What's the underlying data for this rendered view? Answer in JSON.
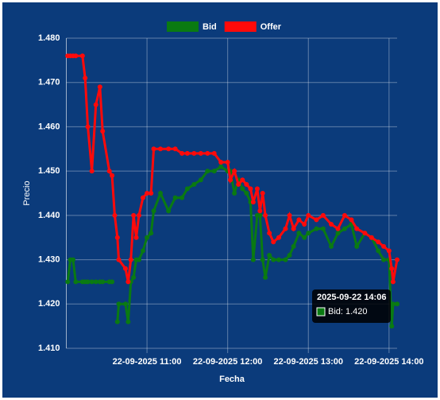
{
  "chart_data": {
    "type": "line",
    "y_label": "Precio",
    "x_label": "Fecha",
    "x": [
      "2025-09-22 10:01",
      "2025-09-22 10:03",
      "2025-09-22 10:05",
      "2025-09-22 10:07",
      "2025-09-22 10:12",
      "2025-09-22 10:14",
      "2025-09-22 10:16",
      "2025-09-22 10:19",
      "2025-09-22 10:22",
      "2025-09-22 10:25",
      "2025-09-22 10:27",
      "2025-09-22 10:32",
      "2025-09-22 10:34",
      "2025-09-22 10:36",
      "2025-09-22 10:38",
      "2025-09-22 10:39",
      "2025-09-22 10:44",
      "2025-09-22 10:46",
      "2025-09-22 10:48",
      "2025-09-22 10:50",
      "2025-09-22 10:52",
      "2025-09-22 10:54",
      "2025-09-22 10:57",
      "2025-09-22 11:00",
      "2025-09-22 11:03",
      "2025-09-22 11:05",
      "2025-09-22 11:10",
      "2025-09-22 11:16",
      "2025-09-22 11:21",
      "2025-09-22 11:26",
      "2025-09-22 11:30",
      "2025-09-22 11:35",
      "2025-09-22 11:40",
      "2025-09-22 11:45",
      "2025-09-22 11:50",
      "2025-09-22 11:55",
      "2025-09-22 12:00",
      "2025-09-22 12:02",
      "2025-09-22 12:05",
      "2025-09-22 12:08",
      "2025-09-22 12:11",
      "2025-09-22 12:14",
      "2025-09-22 12:17",
      "2025-09-22 12:19",
      "2025-09-22 12:22",
      "2025-09-22 12:24",
      "2025-09-22 12:26",
      "2025-09-22 12:28",
      "2025-09-22 12:31",
      "2025-09-22 12:34",
      "2025-09-22 12:38",
      "2025-09-22 12:43",
      "2025-09-22 12:46",
      "2025-09-22 12:49",
      "2025-09-22 12:53",
      "2025-09-22 12:57",
      "2025-09-22 13:00",
      "2025-09-22 13:06",
      "2025-09-22 13:11",
      "2025-09-22 13:17",
      "2025-09-22 13:22",
      "2025-09-22 13:27",
      "2025-09-22 13:32",
      "2025-09-22 13:36",
      "2025-09-22 13:42",
      "2025-09-22 13:47",
      "2025-09-22 13:52",
      "2025-09-22 13:56",
      "2025-09-22 14:00",
      "2025-09-22 14:02",
      "2025-09-22 14:03",
      "2025-09-22 14:06"
    ],
    "series": [
      {
        "name": "Bid",
        "color": "#0a7a12",
        "values": [
          1.425,
          1.43,
          1.43,
          1.425,
          1.425,
          1.425,
          1.425,
          1.425,
          1.425,
          1.425,
          1.425,
          1.425,
          1.425,
          null,
          1.416,
          1.42,
          1.42,
          1.416,
          1.425,
          1.426,
          1.43,
          1.43,
          1.432,
          1.435,
          1.436,
          1.441,
          1.445,
          1.441,
          1.444,
          1.444,
          1.446,
          1.447,
          1.448,
          1.45,
          1.45,
          1.451,
          1.45,
          1.45,
          1.445,
          1.448,
          1.446,
          1.445,
          1.443,
          1.43,
          1.44,
          1.44,
          1.43,
          1.426,
          1.431,
          1.43,
          1.43,
          1.43,
          1.431,
          1.433,
          1.436,
          1.435,
          1.436,
          1.437,
          1.437,
          1.433,
          1.436,
          1.437,
          1.438,
          1.433,
          1.436,
          1.435,
          1.432,
          1.43,
          1.43,
          1.415,
          1.42,
          1.42
        ]
      },
      {
        "name": "Offer",
        "color": "#ff0a0a",
        "values": [
          1.476,
          1.476,
          1.476,
          1.476,
          1.476,
          1.471,
          1.46,
          1.45,
          1.465,
          1.469,
          1.459,
          1.45,
          1.449,
          1.44,
          1.435,
          1.43,
          1.428,
          1.425,
          1.43,
          1.44,
          1.435,
          1.44,
          1.444,
          1.445,
          1.445,
          1.455,
          1.455,
          1.455,
          1.455,
          1.454,
          1.454,
          1.454,
          1.454,
          1.454,
          1.454,
          1.452,
          1.452,
          1.448,
          1.45,
          1.447,
          1.448,
          1.447,
          1.446,
          1.443,
          1.446,
          1.441,
          1.445,
          1.44,
          1.436,
          1.434,
          1.435,
          1.437,
          1.44,
          1.437,
          1.439,
          1.438,
          1.44,
          1.439,
          1.44,
          1.438,
          1.437,
          1.44,
          1.439,
          1.437,
          1.436,
          1.435,
          1.434,
          1.433,
          1.432,
          1.428,
          1.425,
          1.43
        ]
      }
    ],
    "xlim": [
      "2025-09-22 10:00",
      "2025-09-22 14:06"
    ],
    "xticks": [
      {
        "value": "2025-09-22 11:00",
        "label": "22-09-2025 11:00"
      },
      {
        "value": "2025-09-22 12:00",
        "label": "22-09-2025 12:00"
      },
      {
        "value": "2025-09-22 13:00",
        "label": "22-09-2025 13:00"
      },
      {
        "value": "2025-09-22 14:00",
        "label": "22-09-2025 14:00"
      }
    ],
    "ylim": [
      1.41,
      1.48
    ],
    "yticks": [
      {
        "value": 1.41,
        "label": "1.410"
      },
      {
        "value": 1.42,
        "label": "1.420"
      },
      {
        "value": 1.43,
        "label": "1.430"
      },
      {
        "value": 1.44,
        "label": "1.440"
      },
      {
        "value": 1.45,
        "label": "1.450"
      },
      {
        "value": 1.46,
        "label": "1.460"
      },
      {
        "value": 1.47,
        "label": "1.470"
      },
      {
        "value": 1.48,
        "label": "1.480"
      }
    ],
    "grid": true,
    "legend": "top",
    "tooltip": {
      "title": "2025-09-22 14:06",
      "label": "Bid: 1.420"
    }
  }
}
